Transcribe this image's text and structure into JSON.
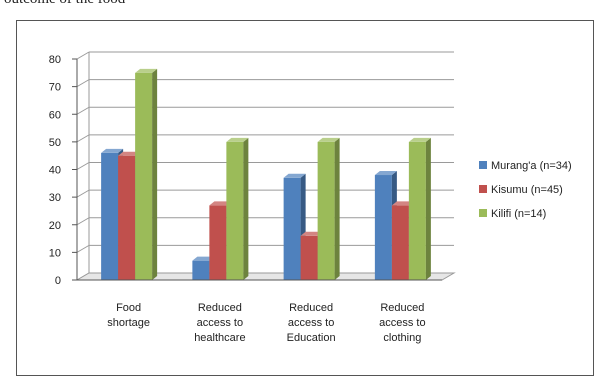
{
  "caption_fragment": "outcome of the food",
  "colors": {
    "murangа": "#4f81bd",
    "kisumu": "#c0504d",
    "kilifi": "#9bbb59"
  },
  "chart_data": {
    "type": "bar",
    "title": "",
    "xlabel": "",
    "ylabel": "",
    "ylim": [
      0,
      80
    ],
    "yticks": [
      "0",
      "10",
      "20",
      "30",
      "40",
      "50",
      "60",
      "70",
      "80"
    ],
    "grid": true,
    "legend_position": "right",
    "categories": [
      [
        "Food",
        "shortage"
      ],
      [
        "Reduced",
        "access to",
        "healthcare"
      ],
      [
        "Reduced",
        "access to",
        "Education"
      ],
      [
        "Reduced",
        "access to",
        "clothing"
      ]
    ],
    "series": [
      {
        "name": "Murang'a (n=34)",
        "color": "#4f81bd",
        "values": [
          46,
          7,
          37,
          38
        ]
      },
      {
        "name": "Kisumu (n=45)",
        "color": "#c0504d",
        "values": [
          45,
          27,
          16,
          27
        ]
      },
      {
        "name": "Kilifi (n=14)",
        "color": "#9bbb59",
        "values": [
          75,
          50,
          50,
          50
        ]
      }
    ]
  }
}
